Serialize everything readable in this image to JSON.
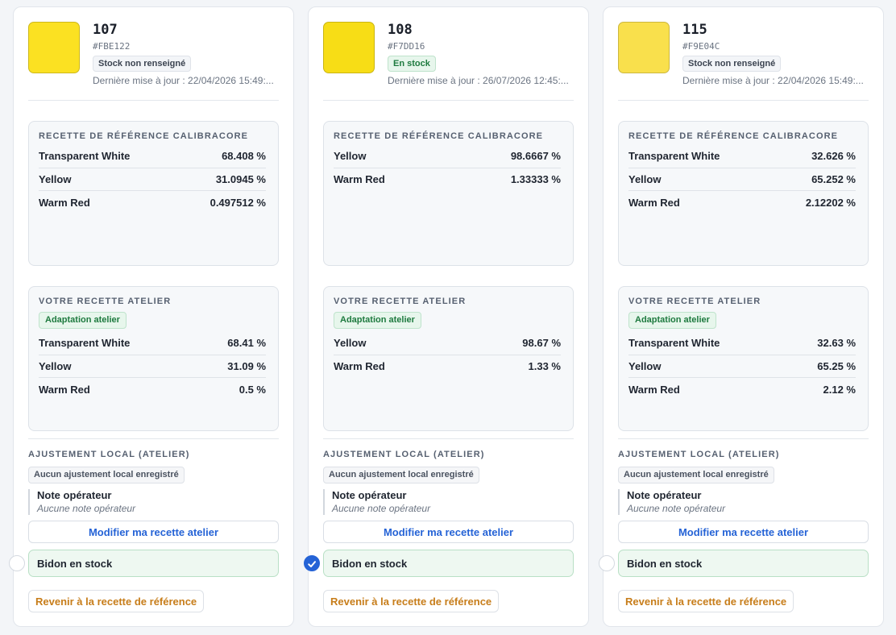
{
  "cards": [
    {
      "code": "107",
      "hex": "#FBE122",
      "swatch_color": "#FBE122",
      "stock_badge": "Stock non renseigné",
      "stock_badge_tone": "neutral",
      "updated": "Dernière mise à jour : 22/04/2026 15:49:...",
      "reference": {
        "title": "Recette de référence CalibraCore",
        "rows": [
          {
            "name": "Transparent White",
            "value": "68.408 %"
          },
          {
            "name": "Yellow",
            "value": "31.0945 %"
          },
          {
            "name": "Warm Red",
            "value": "0.497512 %"
          }
        ]
      },
      "workshop": {
        "title": "Votre recette atelier",
        "pill": "Adaptation atelier",
        "rows": [
          {
            "name": "Transparent White",
            "value": "68.41 %"
          },
          {
            "name": "Yellow",
            "value": "31.09 %"
          },
          {
            "name": "Warm Red",
            "value": "0.5 %"
          }
        ]
      },
      "local_title": "Ajustement local (atelier)",
      "local_chip": "Aucun ajustement local enregistré",
      "note_title": "Note opérateur",
      "note_text": "Aucune note opérateur",
      "edit_button": "Modifier ma recette atelier",
      "stock_label": "Bidon en stock",
      "stock_checked": false,
      "revert_button": "Revenir à la recette de référence"
    },
    {
      "code": "108",
      "hex": "#F7DD16",
      "swatch_color": "#F7DD16",
      "stock_badge": "En stock",
      "stock_badge_tone": "ok",
      "updated": "Dernière mise à jour : 26/07/2026 12:45:...",
      "reference": {
        "title": "Recette de référence CalibraCore",
        "rows": [
          {
            "name": "Yellow",
            "value": "98.6667 %"
          },
          {
            "name": "Warm Red",
            "value": "1.33333 %"
          }
        ]
      },
      "workshop": {
        "title": "Votre recette atelier",
        "pill": "Adaptation atelier",
        "rows": [
          {
            "name": "Yellow",
            "value": "98.67 %"
          },
          {
            "name": "Warm Red",
            "value": "1.33 %"
          }
        ]
      },
      "local_title": "Ajustement local (atelier)",
      "local_chip": "Aucun ajustement local enregistré",
      "note_title": "Note opérateur",
      "note_text": "Aucune note opérateur",
      "edit_button": "Modifier ma recette atelier",
      "stock_label": "Bidon en stock",
      "stock_checked": true,
      "revert_button": "Revenir à la recette de référence"
    },
    {
      "code": "115",
      "hex": "#F9E04C",
      "swatch_color": "#F9E04C",
      "stock_badge": "Stock non renseigné",
      "stock_badge_tone": "neutral",
      "updated": "Dernière mise à jour : 22/04/2026 15:49:...",
      "reference": {
        "title": "Recette de référence CalibraCore",
        "rows": [
          {
            "name": "Transparent White",
            "value": "32.626 %"
          },
          {
            "name": "Yellow",
            "value": "65.252 %"
          },
          {
            "name": "Warm Red",
            "value": "2.12202 %"
          }
        ]
      },
      "workshop": {
        "title": "Votre recette atelier",
        "pill": "Adaptation atelier",
        "rows": [
          {
            "name": "Transparent White",
            "value": "32.63 %"
          },
          {
            "name": "Yellow",
            "value": "65.25 %"
          },
          {
            "name": "Warm Red",
            "value": "2.12 %"
          }
        ]
      },
      "local_title": "Ajustement local (atelier)",
      "local_chip": "Aucun ajustement local enregistré",
      "note_title": "Note opérateur",
      "note_text": "Aucune note opérateur",
      "edit_button": "Modifier ma recette atelier",
      "stock_label": "Bidon en stock",
      "stock_checked": false,
      "revert_button": "Revenir à la recette de référence"
    }
  ]
}
